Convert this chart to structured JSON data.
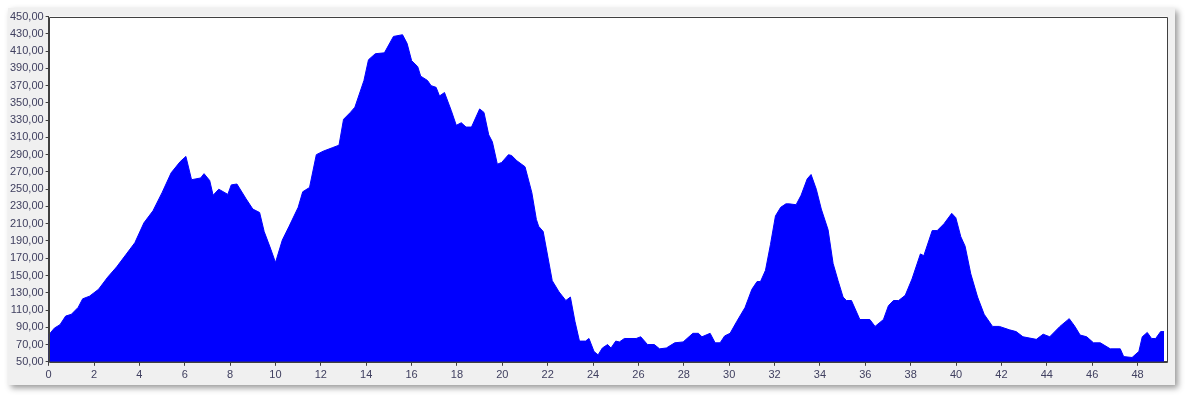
{
  "chart_data": {
    "type": "area",
    "grid": false,
    "legend": false,
    "marker": "none",
    "xlim": [
      0,
      49.3
    ],
    "xticks": [
      0,
      2,
      4,
      6,
      8,
      10,
      12,
      14,
      16,
      18,
      20,
      22,
      24,
      26,
      28,
      30,
      32,
      34,
      36,
      38,
      40,
      42,
      44,
      46,
      48
    ],
    "ylim": [
      50,
      450
    ],
    "yticks": [
      {
        "value": 50,
        "label": "50,00"
      },
      {
        "value": 70,
        "label": "70,00"
      },
      {
        "value": 90,
        "label": "90,00"
      },
      {
        "value": 110,
        "label": "110,00"
      },
      {
        "value": 130,
        "label": "130,00"
      },
      {
        "value": 150,
        "label": "150,00"
      },
      {
        "value": 170,
        "label": "170,00"
      },
      {
        "value": 190,
        "label": "190,00"
      },
      {
        "value": 210,
        "label": "210,00"
      },
      {
        "value": 230,
        "label": "230,00"
      },
      {
        "value": 250,
        "label": "250,00"
      },
      {
        "value": 270,
        "label": "270,00"
      },
      {
        "value": 290,
        "label": "290,00"
      },
      {
        "value": 310,
        "label": "310,00"
      },
      {
        "value": 330,
        "label": "330,00"
      },
      {
        "value": 350,
        "label": "350,00"
      },
      {
        "value": 370,
        "label": "370,00"
      },
      {
        "value": 390,
        "label": "390,00"
      },
      {
        "value": 410,
        "label": "410,00"
      },
      {
        "value": 430,
        "label": "430,00"
      },
      {
        "value": 450,
        "label": "450,00"
      }
    ],
    "series": [
      {
        "color": "#0000ff",
        "x": [
          0,
          0.25,
          0.5,
          0.75,
          1,
          1.3,
          1.5,
          1.8,
          2.2,
          2.6,
          3,
          3.4,
          3.8,
          4.2,
          4.6,
          5,
          5.4,
          5.8,
          6.05,
          6.3,
          6.7,
          6.85,
          7.1,
          7.25,
          7.5,
          7.9,
          8.05,
          8.3,
          8.7,
          9,
          9.3,
          9.5,
          9.8,
          10,
          10.3,
          10.6,
          11,
          11.2,
          11.5,
          11.8,
          12.1,
          12.5,
          12.8,
          13,
          13.3,
          13.5,
          13.9,
          14.1,
          14.4,
          14.8,
          15.2,
          15.6,
          15.8,
          16,
          16.27,
          16.4,
          16.7,
          16.86,
          17.08,
          17.23,
          17.45,
          17.75,
          17.97,
          18.19,
          18.4,
          18.64,
          19,
          19.19,
          19.4,
          19.56,
          19.78,
          19.97,
          20.27,
          20.41,
          20.64,
          21,
          21.3,
          21.5,
          21.6,
          21.8,
          22.2,
          22.5,
          22.8,
          23,
          23.2,
          23.4,
          23.67,
          23.82,
          24.04,
          24.22,
          24.41,
          24.64,
          24.79,
          25,
          25.16,
          25.38,
          25.9,
          26.1,
          26.4,
          26.7,
          26.93,
          27.23,
          27.6,
          27.97,
          28.4,
          28.64,
          28.8,
          29.16,
          29.38,
          29.6,
          29.8,
          30.04,
          30.34,
          30.7,
          31,
          31.23,
          31.38,
          31.6,
          31.82,
          32.04,
          32.27,
          32.5,
          32.65,
          32.95,
          33.17,
          33.44,
          33.61,
          33.84,
          34.06,
          34.36,
          34.58,
          34.8,
          35.02,
          35.17,
          35.39,
          35.76,
          36.2,
          36.43,
          36.8,
          37.02,
          37.24,
          37.47,
          37.76,
          38.06,
          38.43,
          38.58,
          38.95,
          39.17,
          39.47,
          39.81,
          39.99,
          40.21,
          40.4,
          40.65,
          40.95,
          41.24,
          41.61,
          41.91,
          42.36,
          42.65,
          42.95,
          43.54,
          43.84,
          44.13,
          44.58,
          44.99,
          45.24,
          45.47,
          45.76,
          46.06,
          46.36,
          46.8,
          47.24,
          47.39,
          47.76,
          48.06,
          48.21,
          48.43,
          48.62,
          48.8,
          49.02,
          49.17
        ],
        "values": [
          81,
          89,
          93,
          103,
          105,
          113,
          123,
          126,
          134,
          148,
          160,
          174,
          188,
          211,
          225,
          246,
          269,
          282,
          288,
          261,
          263,
          268,
          260,
          243,
          250,
          244,
          255,
          256,
          239,
          227,
          223,
          201,
          180,
          165,
          191,
          207,
          229,
          247,
          252,
          290,
          294,
          298,
          301,
          331,
          339,
          345,
          376,
          400,
          407,
          408,
          427,
          429,
          419,
          399,
          392,
          381,
          376,
          370,
          368,
          358,
          362,
          341,
          324,
          327,
          322,
          322,
          343,
          339,
          313,
          305,
          279,
          281,
          290,
          289,
          283,
          276,
          246,
          215,
          207,
          201,
          144,
          131,
          121,
          125,
          97,
          74,
          74,
          77,
          62,
          58,
          66,
          70,
          66,
          74,
          73,
          77,
          77,
          79,
          70,
          70,
          65,
          66,
          72,
          73,
          83,
          83,
          79,
          83,
          72,
          72,
          80,
          83,
          97,
          113,
          134,
          143,
          143,
          156,
          186,
          219,
          229,
          233,
          233,
          232,
          243,
          262,
          267,
          250,
          227,
          203,
          164,
          144,
          125,
          121,
          121,
          99,
          99,
          91,
          99,
          115,
          121,
          121,
          127,
          146,
          175,
          173,
          202,
          202,
          210,
          222,
          217,
          195,
          184,
          152,
          125,
          105,
          91,
          91,
          87,
          85,
          79,
          76,
          82,
          79,
          91,
          100,
          91,
          81,
          79,
          72,
          72,
          65,
          65,
          56,
          55,
          62,
          79,
          84,
          77,
          77,
          85,
          85
        ]
      }
    ]
  }
}
